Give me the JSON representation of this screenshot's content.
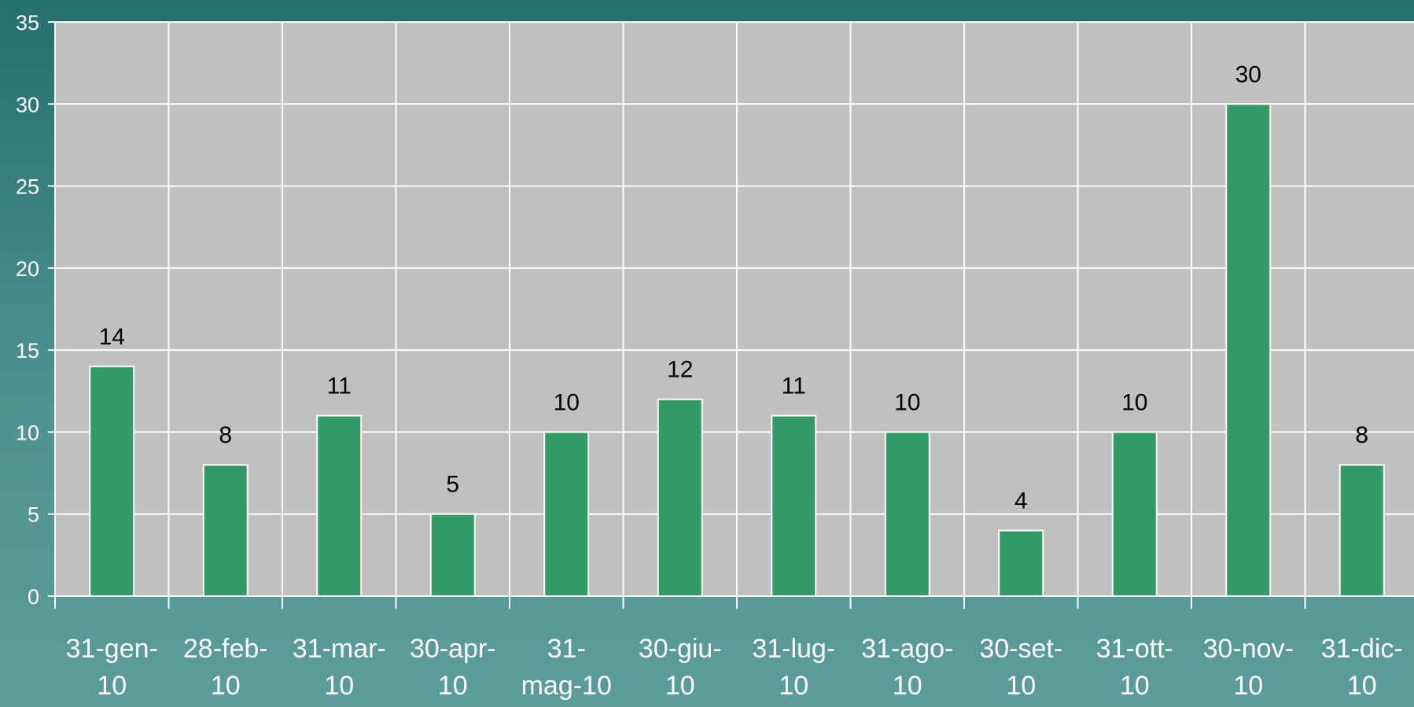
{
  "chart_data": {
    "type": "bar",
    "categories": [
      [
        "31-gen-",
        "10"
      ],
      [
        "28-feb-",
        "10"
      ],
      [
        "31-mar-",
        "10"
      ],
      [
        "30-apr-",
        "10"
      ],
      [
        "31-",
        "mag-10"
      ],
      [
        "30-giu-",
        "10"
      ],
      [
        "31-lug-",
        "10"
      ],
      [
        "31-ago-",
        "10"
      ],
      [
        "30-set-",
        "10"
      ],
      [
        "31-ott-",
        "10"
      ],
      [
        "30-nov-",
        "10"
      ],
      [
        "31-dic-",
        "10"
      ]
    ],
    "values": [
      14,
      8,
      11,
      5,
      10,
      12,
      11,
      10,
      4,
      10,
      30,
      8
    ],
    "ylim": [
      0,
      35
    ],
    "yticks": [
      0,
      5,
      10,
      15,
      20,
      25,
      30,
      35
    ],
    "grid": true,
    "data_labels": true,
    "colors": {
      "bar": "#339966",
      "bar_border": "#ffffff",
      "plot_background": "#c0c0c0",
      "gridline": "#ffffff"
    }
  }
}
